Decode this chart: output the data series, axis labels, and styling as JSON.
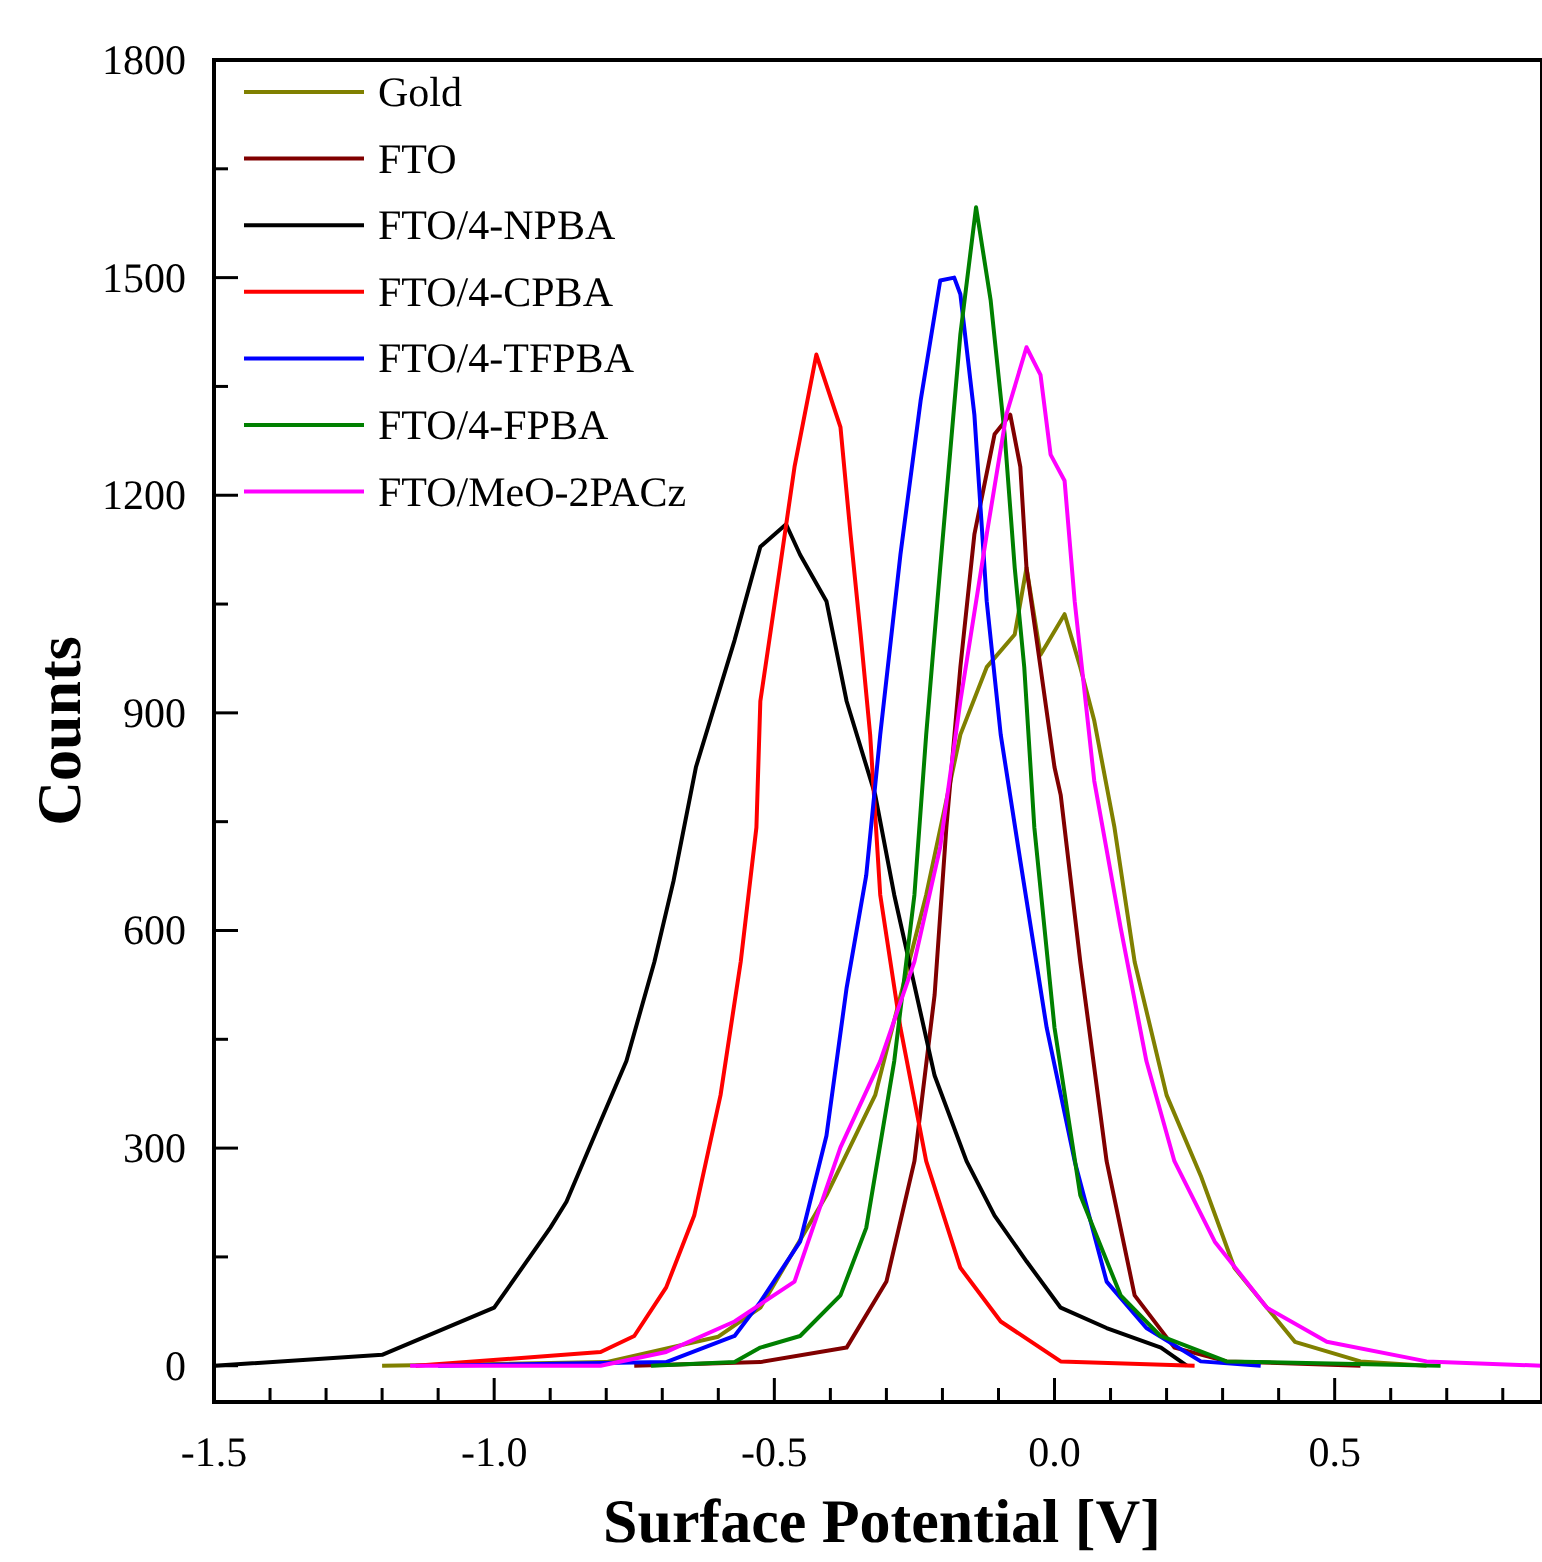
{
  "chart_data": {
    "type": "line",
    "xlabel": "Surface Potential [V]",
    "ylabel": "Counts",
    "xlim": [
      -1.5,
      0.87
    ],
    "ylim": [
      -50,
      1800
    ],
    "xticks": [
      -1.5,
      {
        "value": -1.4,
        "label": null
      },
      {
        "value": -1.3,
        "label": null
      },
      {
        "value": -1.2,
        "label": null
      },
      {
        "value": -1.1,
        "label": null
      },
      {
        "value": -1.0,
        "label": "-1.0"
      },
      {
        "value": -0.9,
        "label": null
      },
      {
        "value": -0.8,
        "label": null
      },
      {
        "value": -0.7,
        "label": null
      },
      {
        "value": -0.6,
        "label": null
      },
      -0.5,
      {
        "value": -0.4,
        "label": null
      },
      {
        "value": -0.3,
        "label": null
      },
      {
        "value": -0.2,
        "label": null
      },
      {
        "value": -0.1,
        "label": null
      },
      {
        "value": 0,
        "label": "0.0"
      },
      {
        "value": 0.1,
        "label": null
      },
      {
        "value": 0.2,
        "label": null
      },
      {
        "value": 0.3,
        "label": null
      },
      {
        "value": 0.4,
        "label": null
      },
      0.5,
      {
        "value": 0.6,
        "label": null
      },
      {
        "value": 0.7,
        "label": null
      },
      {
        "value": 0.8,
        "label": null
      }
    ],
    "yticks": [
      0,
      {
        "value": 150,
        "label": null
      },
      300,
      {
        "value": 450,
        "label": null
      },
      600,
      {
        "value": 750,
        "label": null
      },
      900,
      {
        "value": 1050,
        "label": null
      },
      1200,
      {
        "value": 1350,
        "label": null
      },
      1500,
      {
        "value": 1650,
        "label": null
      },
      1800
    ],
    "legend": "top left",
    "grid": false,
    "series": [
      {
        "name": "Gold",
        "color": "#808000",
        "x": [
          -1.2,
          -0.8,
          -0.6,
          -0.525,
          -0.407,
          -0.32,
          -0.229,
          -0.168,
          -0.121,
          -0.071,
          -0.05,
          -0.025,
          0.018,
          0.046,
          0.071,
          0.107,
          0.143,
          0.2,
          0.261,
          0.321,
          0.429,
          0.546,
          0.664
        ],
        "values": [
          0,
          5,
          40,
          80,
          235,
          373,
          649,
          870,
          963,
          1008,
          1100,
          980,
          1036,
          963,
          889,
          742,
          557,
          373,
          262,
          135,
          33,
          6,
          0
        ]
      },
      {
        "name": "FTO",
        "color": "#800000",
        "x": [
          -0.75,
          -0.525,
          -0.371,
          -0.3,
          -0.25,
          -0.214,
          -0.193,
          -0.168,
          -0.143,
          -0.107,
          -0.079,
          -0.061,
          -0.05,
          -0.025,
          0,
          0.011,
          0.046,
          0.093,
          0.143,
          0.214,
          0.307,
          0.546
        ],
        "values": [
          0,
          5,
          25,
          116,
          282,
          511,
          742,
          963,
          1146,
          1284,
          1311,
          1239,
          1100,
          963,
          825,
          787,
          557,
          282,
          97,
          25,
          6,
          0
        ]
      },
      {
        "name": "FTO/4-NPBA",
        "color": "#000000",
        "x": [
          -1.5,
          -1.2,
          -1.0,
          -0.9,
          -0.871,
          -0.81,
          -0.764,
          -0.714,
          -0.68,
          -0.64,
          -0.571,
          -0.525,
          -0.479,
          -0.454,
          -0.407,
          -0.371,
          -0.32,
          -0.286,
          -0.214,
          -0.157,
          -0.107,
          -0.05,
          0.011,
          0.093,
          0.19,
          0.236
        ],
        "values": [
          0,
          15,
          80,
          190,
          226,
          337,
          420,
          557,
          668,
          825,
          1000,
          1129,
          1160,
          1118,
          1054,
          916,
          787,
          649,
          400,
          282,
          207,
          144,
          80,
          52,
          25,
          0
        ]
      },
      {
        "name": "FTO/4-CPBA",
        "color": "#ff0000",
        "x": [
          -1.14,
          -0.893,
          -0.81,
          -0.75,
          -0.693,
          -0.643,
          -0.596,
          -0.56,
          -0.532,
          -0.525,
          -0.49,
          -0.464,
          -0.425,
          -0.382,
          -0.364,
          -0.346,
          -0.329,
          -0.311,
          -0.275,
          -0.229,
          -0.168,
          -0.096,
          0.011,
          0.25
        ],
        "values": [
          0,
          14,
          19,
          41,
          108,
          207,
          373,
          557,
          742,
          916,
          1100,
          1239,
          1394,
          1294,
          1146,
          1008,
          870,
          649,
          466,
          282,
          135,
          61,
          6,
          0
        ]
      },
      {
        "name": "FTO/4-TFPBA",
        "color": "#0000ff",
        "x": [
          -1.1,
          -0.693,
          -0.571,
          -0.525,
          -0.454,
          -0.407,
          -0.371,
          -0.336,
          -0.311,
          -0.275,
          -0.239,
          -0.204,
          -0.179,
          -0.168,
          -0.143,
          -0.121,
          -0.096,
          -0.061,
          -0.014,
          0.036,
          0.093,
          0.164,
          0.261,
          0.368
        ],
        "values": [
          0,
          5,
          41,
          88,
          171,
          317,
          521,
          676,
          870,
          1118,
          1330,
          1496,
          1500,
          1477,
          1311,
          1054,
          870,
          696,
          466,
          282,
          116,
          52,
          6,
          0
        ]
      },
      {
        "name": "FTO/4-FPBA",
        "color": "#008000",
        "x": [
          -0.72,
          -0.571,
          -0.525,
          -0.454,
          -0.382,
          -0.336,
          -0.286,
          -0.25,
          -0.229,
          -0.204,
          -0.168,
          -0.14,
          -0.114,
          -0.089,
          -0.071,
          -0.054,
          -0.036,
          0,
          0.046,
          0.118,
          0.189,
          0.307,
          0.689
        ],
        "values": [
          0,
          5,
          25,
          41,
          97,
          190,
          420,
          649,
          870,
          1100,
          1422,
          1597,
          1469,
          1284,
          1100,
          963,
          742,
          466,
          235,
          97,
          41,
          6,
          0
        ]
      },
      {
        "name": "FTO/MeO-2PACz",
        "color": "#ff00ff",
        "x": [
          -1.15,
          -0.81,
          -0.693,
          -0.571,
          -0.464,
          -0.382,
          -0.311,
          -0.25,
          -0.204,
          -0.168,
          -0.121,
          -0.086,
          -0.05,
          -0.025,
          -0.007,
          0.018,
          0.036,
          0.071,
          0.118,
          0.164,
          0.214,
          0.286,
          0.379,
          0.486,
          0.664,
          0.87
        ],
        "values": [
          0,
          0,
          19,
          61,
          116,
          301,
          420,
          557,
          715,
          916,
          1146,
          1311,
          1404,
          1366,
          1256,
          1220,
          1054,
          806,
          604,
          420,
          282,
          171,
          80,
          33,
          6,
          0
        ]
      }
    ]
  }
}
